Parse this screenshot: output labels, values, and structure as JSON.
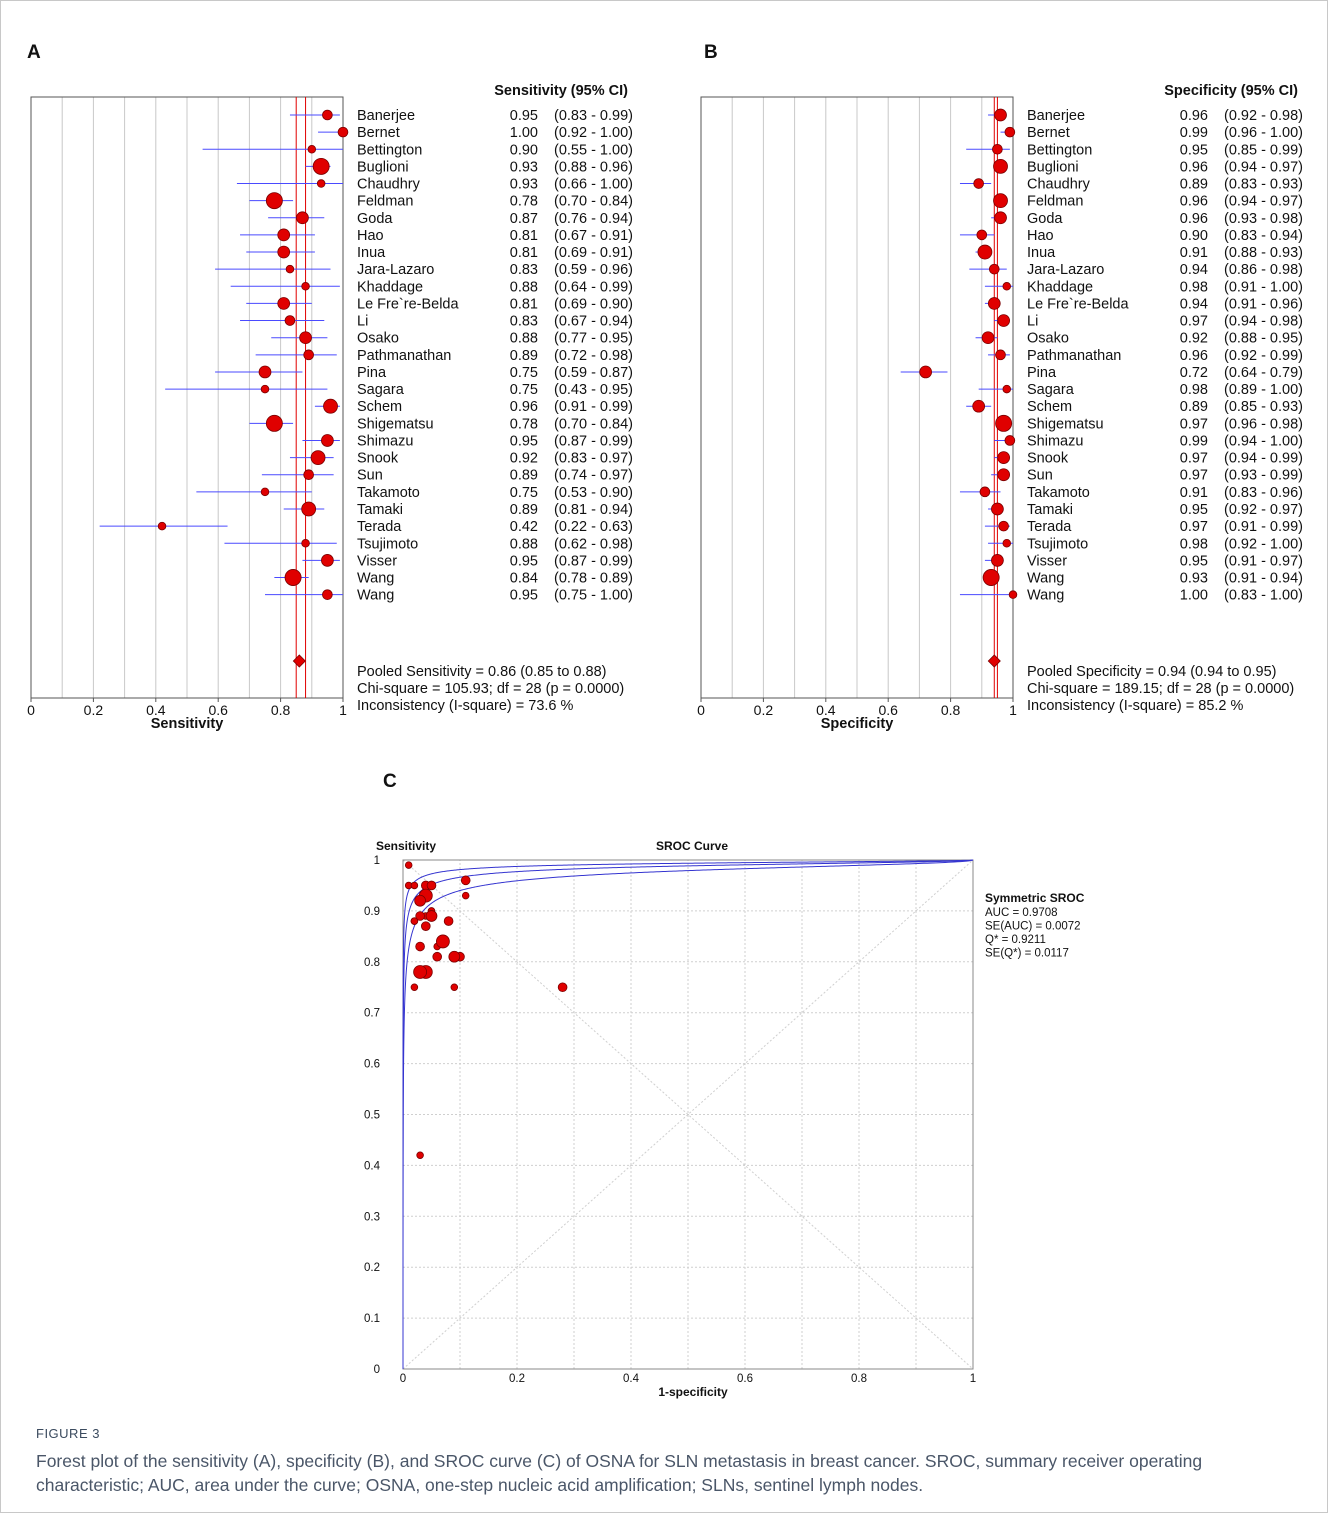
{
  "colors": {
    "marker": "#e00000",
    "ci_line": "#4a4aff",
    "pooled_line": "#e00000",
    "grid": "#c8c8c8",
    "curve": "#3535d0",
    "caption_text": "#4a5668"
  },
  "chart_data": [
    {
      "panel": "A",
      "type": "forest",
      "column_header": "Sensitivity (95% CI)",
      "xlabel": "Sensitivity",
      "xlim": [
        0,
        1
      ],
      "ticks": [
        "0",
        "0.2",
        "0.4",
        "0.6",
        "0.8",
        "1"
      ],
      "studies": [
        {
          "name": "Banerjee",
          "est": 0.95,
          "lo": 0.83,
          "hi": 0.99,
          "weight": 2,
          "text": "0.95",
          "ci": "(0.83 - 0.99)"
        },
        {
          "name": "Bernet",
          "est": 1.0,
          "lo": 0.92,
          "hi": 1.0,
          "weight": 2,
          "text": "1.00",
          "ci": "(0.92 - 1.00)"
        },
        {
          "name": "Bettington",
          "est": 0.9,
          "lo": 0.55,
          "hi": 1.0,
          "weight": 1,
          "text": "0.90",
          "ci": "(0.55 - 1.00)"
        },
        {
          "name": "Buglioni",
          "est": 0.93,
          "lo": 0.88,
          "hi": 0.96,
          "weight": 5,
          "text": "0.93",
          "ci": "(0.88 - 0.96)"
        },
        {
          "name": "Chaudhry",
          "est": 0.93,
          "lo": 0.66,
          "hi": 1.0,
          "weight": 1,
          "text": "0.93",
          "ci": "(0.66 - 1.00)"
        },
        {
          "name": "Feldman",
          "est": 0.78,
          "lo": 0.7,
          "hi": 0.84,
          "weight": 5,
          "text": "0.78",
          "ci": "(0.70 - 0.84)"
        },
        {
          "name": "Goda",
          "est": 0.87,
          "lo": 0.76,
          "hi": 0.94,
          "weight": 3,
          "text": "0.87",
          "ci": "(0.76 - 0.94)"
        },
        {
          "name": "Hao",
          "est": 0.81,
          "lo": 0.67,
          "hi": 0.91,
          "weight": 3,
          "text": "0.81",
          "ci": "(0.67 - 0.91)"
        },
        {
          "name": "Inua",
          "est": 0.81,
          "lo": 0.69,
          "hi": 0.91,
          "weight": 3,
          "text": "0.81",
          "ci": "(0.69 - 0.91)"
        },
        {
          "name": "Jara-Lazaro",
          "est": 0.83,
          "lo": 0.59,
          "hi": 0.96,
          "weight": 1,
          "text": "0.83",
          "ci": "(0.59 - 0.96)"
        },
        {
          "name": "Khaddage",
          "est": 0.88,
          "lo": 0.64,
          "hi": 0.99,
          "weight": 1,
          "text": "0.88",
          "ci": "(0.64 - 0.99)"
        },
        {
          "name": "Le Fre`re-Belda",
          "est": 0.81,
          "lo": 0.69,
          "hi": 0.9,
          "weight": 3,
          "text": "0.81",
          "ci": "(0.69 - 0.90)"
        },
        {
          "name": "Li",
          "est": 0.83,
          "lo": 0.67,
          "hi": 0.94,
          "weight": 2,
          "text": "0.83",
          "ci": "(0.67 - 0.94)"
        },
        {
          "name": "Osako",
          "est": 0.88,
          "lo": 0.77,
          "hi": 0.95,
          "weight": 3,
          "text": "0.88",
          "ci": "(0.77 - 0.95)"
        },
        {
          "name": "Pathmanathan",
          "est": 0.89,
          "lo": 0.72,
          "hi": 0.98,
          "weight": 2,
          "text": "0.89",
          "ci": "(0.72 - 0.98)"
        },
        {
          "name": "Pina",
          "est": 0.75,
          "lo": 0.59,
          "hi": 0.87,
          "weight": 3,
          "text": "0.75",
          "ci": "(0.59 - 0.87)"
        },
        {
          "name": "Sagara",
          "est": 0.75,
          "lo": 0.43,
          "hi": 0.95,
          "weight": 1,
          "text": "0.75",
          "ci": "(0.43 - 0.95)"
        },
        {
          "name": "Schem",
          "est": 0.96,
          "lo": 0.91,
          "hi": 0.99,
          "weight": 4,
          "text": "0.96",
          "ci": "(0.91 - 0.99)"
        },
        {
          "name": "Shigematsu",
          "est": 0.78,
          "lo": 0.7,
          "hi": 0.84,
          "weight": 5,
          "text": "0.78",
          "ci": "(0.70 - 0.84)"
        },
        {
          "name": "Shimazu",
          "est": 0.95,
          "lo": 0.87,
          "hi": 0.99,
          "weight": 3,
          "text": "0.95",
          "ci": "(0.87 - 0.99)"
        },
        {
          "name": "Snook",
          "est": 0.92,
          "lo": 0.83,
          "hi": 0.97,
          "weight": 4,
          "text": "0.92",
          "ci": "(0.83 - 0.97)"
        },
        {
          "name": "Sun",
          "est": 0.89,
          "lo": 0.74,
          "hi": 0.97,
          "weight": 2,
          "text": "0.89",
          "ci": "(0.74 - 0.97)"
        },
        {
          "name": "Takamoto",
          "est": 0.75,
          "lo": 0.53,
          "hi": 0.9,
          "weight": 1,
          "text": "0.75",
          "ci": "(0.53 - 0.90)"
        },
        {
          "name": "Tamaki",
          "est": 0.89,
          "lo": 0.81,
          "hi": 0.94,
          "weight": 4,
          "text": "0.89",
          "ci": "(0.81 - 0.94)"
        },
        {
          "name": "Terada",
          "est": 0.42,
          "lo": 0.22,
          "hi": 0.63,
          "weight": 1,
          "text": "0.42",
          "ci": "(0.22 - 0.63)"
        },
        {
          "name": "Tsujimoto",
          "est": 0.88,
          "lo": 0.62,
          "hi": 0.98,
          "weight": 1,
          "text": "0.88",
          "ci": "(0.62 - 0.98)"
        },
        {
          "name": "Visser",
          "est": 0.95,
          "lo": 0.87,
          "hi": 0.99,
          "weight": 3,
          "text": "0.95",
          "ci": "(0.87 - 0.99)"
        },
        {
          "name": "Wang",
          "est": 0.84,
          "lo": 0.78,
          "hi": 0.89,
          "weight": 5,
          "text": "0.84",
          "ci": "(0.78 - 0.89)"
        },
        {
          "name": "Wang",
          "est": 0.95,
          "lo": 0.75,
          "hi": 1.0,
          "weight": 2,
          "text": "0.95",
          "ci": "(0.75 - 1.00)"
        }
      ],
      "pooled": {
        "est": 0.86,
        "lo": 0.85,
        "hi": 0.88
      },
      "stats": [
        "Pooled Sensitivity = 0.86 (0.85 to 0.88)",
        "Chi-square = 105.93; df =  28 (p = 0.0000)",
        "Inconsistency (I-square) = 73.6 %"
      ]
    },
    {
      "panel": "B",
      "type": "forest",
      "column_header": "Specificity (95% CI)",
      "xlabel": "Specificity",
      "xlim": [
        0,
        1
      ],
      "ticks": [
        "0",
        "0.2",
        "0.4",
        "0.6",
        "0.8",
        "1"
      ],
      "studies": [
        {
          "name": "Banerjee",
          "est": 0.96,
          "lo": 0.92,
          "hi": 0.98,
          "weight": 3,
          "text": "0.96",
          "ci": "(0.92 - 0.98)"
        },
        {
          "name": "Bernet",
          "est": 0.99,
          "lo": 0.96,
          "hi": 1.0,
          "weight": 2,
          "text": "0.99",
          "ci": "(0.96 - 1.00)"
        },
        {
          "name": "Bettington",
          "est": 0.95,
          "lo": 0.85,
          "hi": 0.99,
          "weight": 2,
          "text": "0.95",
          "ci": "(0.85 - 0.99)"
        },
        {
          "name": "Buglioni",
          "est": 0.96,
          "lo": 0.94,
          "hi": 0.97,
          "weight": 4,
          "text": "0.96",
          "ci": "(0.94 - 0.97)"
        },
        {
          "name": "Chaudhry",
          "est": 0.89,
          "lo": 0.83,
          "hi": 0.93,
          "weight": 2,
          "text": "0.89",
          "ci": "(0.83 - 0.93)"
        },
        {
          "name": "Feldman",
          "est": 0.96,
          "lo": 0.94,
          "hi": 0.97,
          "weight": 4,
          "text": "0.96",
          "ci": "(0.94 - 0.97)"
        },
        {
          "name": "Goda",
          "est": 0.96,
          "lo": 0.93,
          "hi": 0.98,
          "weight": 3,
          "text": "0.96",
          "ci": "(0.93 - 0.98)"
        },
        {
          "name": "Hao",
          "est": 0.9,
          "lo": 0.83,
          "hi": 0.94,
          "weight": 2,
          "text": "0.90",
          "ci": "(0.83 - 0.94)"
        },
        {
          "name": "Inua",
          "est": 0.91,
          "lo": 0.88,
          "hi": 0.93,
          "weight": 4,
          "text": "0.91",
          "ci": "(0.88 - 0.93)"
        },
        {
          "name": "Jara-Lazaro",
          "est": 0.94,
          "lo": 0.86,
          "hi": 0.98,
          "weight": 2,
          "text": "0.94",
          "ci": "(0.86 - 0.98)"
        },
        {
          "name": "Khaddage",
          "est": 0.98,
          "lo": 0.91,
          "hi": 1.0,
          "weight": 1,
          "text": "0.98",
          "ci": "(0.91 - 1.00)"
        },
        {
          "name": "Le Fre`re-Belda",
          "est": 0.94,
          "lo": 0.91,
          "hi": 0.96,
          "weight": 3,
          "text": "0.94",
          "ci": "(0.91 - 0.96)"
        },
        {
          "name": "Li",
          "est": 0.97,
          "lo": 0.94,
          "hi": 0.98,
          "weight": 3,
          "text": "0.97",
          "ci": "(0.94 - 0.98)"
        },
        {
          "name": "Osako",
          "est": 0.92,
          "lo": 0.88,
          "hi": 0.95,
          "weight": 3,
          "text": "0.92",
          "ci": "(0.88 - 0.95)"
        },
        {
          "name": "Pathmanathan",
          "est": 0.96,
          "lo": 0.92,
          "hi": 0.99,
          "weight": 2,
          "text": "0.96",
          "ci": "(0.92 - 0.99)"
        },
        {
          "name": "Pina",
          "est": 0.72,
          "lo": 0.64,
          "hi": 0.79,
          "weight": 3,
          "text": "0.72",
          "ci": "(0.64 - 0.79)"
        },
        {
          "name": "Sagara",
          "est": 0.98,
          "lo": 0.89,
          "hi": 1.0,
          "weight": 1,
          "text": "0.98",
          "ci": "(0.89 - 1.00)"
        },
        {
          "name": "Schem",
          "est": 0.89,
          "lo": 0.85,
          "hi": 0.93,
          "weight": 3,
          "text": "0.89",
          "ci": "(0.85 - 0.93)"
        },
        {
          "name": "Shigematsu",
          "est": 0.97,
          "lo": 0.96,
          "hi": 0.98,
          "weight": 5,
          "text": "0.97",
          "ci": "(0.96 - 0.98)"
        },
        {
          "name": "Shimazu",
          "est": 0.99,
          "lo": 0.94,
          "hi": 1.0,
          "weight": 2,
          "text": "0.99",
          "ci": "(0.94 - 1.00)"
        },
        {
          "name": "Snook",
          "est": 0.97,
          "lo": 0.94,
          "hi": 0.99,
          "weight": 3,
          "text": "0.97",
          "ci": "(0.94 - 0.99)"
        },
        {
          "name": "Sun",
          "est": 0.97,
          "lo": 0.93,
          "hi": 0.99,
          "weight": 3,
          "text": "0.97",
          "ci": "(0.93 - 0.99)"
        },
        {
          "name": "Takamoto",
          "est": 0.91,
          "lo": 0.83,
          "hi": 0.96,
          "weight": 2,
          "text": "0.91",
          "ci": "(0.83 - 0.96)"
        },
        {
          "name": "Tamaki",
          "est": 0.95,
          "lo": 0.92,
          "hi": 0.97,
          "weight": 3,
          "text": "0.95",
          "ci": "(0.92 - 0.97)"
        },
        {
          "name": "Terada",
          "est": 0.97,
          "lo": 0.91,
          "hi": 0.99,
          "weight": 2,
          "text": "0.97",
          "ci": "(0.91 - 0.99)"
        },
        {
          "name": "Tsujimoto",
          "est": 0.98,
          "lo": 0.92,
          "hi": 1.0,
          "weight": 1,
          "text": "0.98",
          "ci": "(0.92 - 1.00)"
        },
        {
          "name": "Visser",
          "est": 0.95,
          "lo": 0.91,
          "hi": 0.97,
          "weight": 3,
          "text": "0.95",
          "ci": "(0.91 - 0.97)"
        },
        {
          "name": "Wang",
          "est": 0.93,
          "lo": 0.91,
          "hi": 0.94,
          "weight": 5,
          "text": "0.93",
          "ci": "(0.91 - 0.94)"
        },
        {
          "name": "Wang",
          "est": 1.0,
          "lo": 0.83,
          "hi": 1.0,
          "weight": 1,
          "text": "1.00",
          "ci": "(0.83 - 1.00)"
        }
      ],
      "pooled": {
        "est": 0.94,
        "lo": 0.94,
        "hi": 0.95
      },
      "stats": [
        "Pooled Specificity = 0.94 (0.94 to 0.95)",
        "Chi-square = 189.15; df =  28 (p = 0.0000)",
        "Inconsistency (I-square) = 85.2 %"
      ]
    },
    {
      "panel": "C",
      "type": "scatter",
      "title": "SROC Curve",
      "xlabel": "1-specificity",
      "ylabel": "Sensitivity",
      "xlim": [
        0,
        1
      ],
      "ylim": [
        0,
        1
      ],
      "xticks": [
        "0",
        "0.2",
        "0.4",
        "0.6",
        "0.8",
        "1"
      ],
      "yticks": [
        "0",
        "0.1",
        "0.2",
        "0.3",
        "0.4",
        "0.5",
        "0.6",
        "0.7",
        "0.8",
        "0.9",
        "1"
      ],
      "grid": true,
      "points": [
        {
          "x": 0.04,
          "y": 0.95,
          "w": 2
        },
        {
          "x": 0.01,
          "y": 0.99,
          "w": 1
        },
        {
          "x": 0.05,
          "y": 0.9,
          "w": 1
        },
        {
          "x": 0.04,
          "y": 0.93,
          "w": 4
        },
        {
          "x": 0.11,
          "y": 0.93,
          "w": 1
        },
        {
          "x": 0.04,
          "y": 0.78,
          "w": 4
        },
        {
          "x": 0.04,
          "y": 0.87,
          "w": 2
        },
        {
          "x": 0.1,
          "y": 0.81,
          "w": 2
        },
        {
          "x": 0.09,
          "y": 0.81,
          "w": 3
        },
        {
          "x": 0.06,
          "y": 0.83,
          "w": 1
        },
        {
          "x": 0.02,
          "y": 0.88,
          "w": 1
        },
        {
          "x": 0.06,
          "y": 0.81,
          "w": 2
        },
        {
          "x": 0.03,
          "y": 0.83,
          "w": 2
        },
        {
          "x": 0.08,
          "y": 0.88,
          "w": 2
        },
        {
          "x": 0.04,
          "y": 0.89,
          "w": 1
        },
        {
          "x": 0.28,
          "y": 0.75,
          "w": 2
        },
        {
          "x": 0.02,
          "y": 0.75,
          "w": 1
        },
        {
          "x": 0.11,
          "y": 0.96,
          "w": 2
        },
        {
          "x": 0.03,
          "y": 0.78,
          "w": 4
        },
        {
          "x": 0.01,
          "y": 0.95,
          "w": 1
        },
        {
          "x": 0.03,
          "y": 0.92,
          "w": 3
        },
        {
          "x": 0.03,
          "y": 0.89,
          "w": 2
        },
        {
          "x": 0.09,
          "y": 0.75,
          "w": 1
        },
        {
          "x": 0.05,
          "y": 0.89,
          "w": 3
        },
        {
          "x": 0.03,
          "y": 0.42,
          "w": 1
        },
        {
          "x": 0.02,
          "y": 0.88,
          "w": 1
        },
        {
          "x": 0.05,
          "y": 0.95,
          "w": 2
        },
        {
          "x": 0.07,
          "y": 0.84,
          "w": 4
        },
        {
          "x": 0.02,
          "y": 0.95,
          "w": 1
        }
      ],
      "legend_title": "Symmetric SROC",
      "stats": [
        "AUC = 0.9708",
        "SE(AUC) = 0.0072",
        "Q* = 0.9211",
        "SE(Q*) = 0.0117"
      ]
    }
  ],
  "caption": {
    "label": "FIGURE 3",
    "text": "Forest plot of the sensitivity (A), specificity (B), and SROC curve (C) of OSNA for SLN metastasis in breast cancer. SROC, summary receiver operating characteristic; AUC, area under the curve; OSNA, one-step nucleic acid amplification; SLNs, sentinel lymph nodes."
  }
}
